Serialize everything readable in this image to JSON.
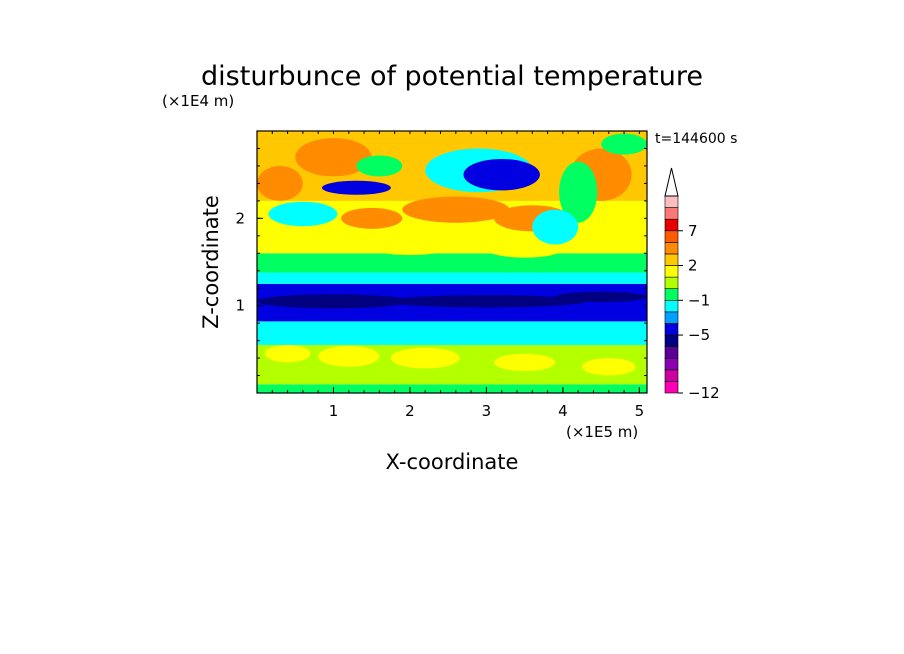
{
  "chart_data": {
    "type": "heatmap",
    "title": "disturbunce of potential temperature",
    "xlabel": "X-coordinate",
    "ylabel": "Z-coordinate",
    "x_unit": "(×1E5 m)",
    "y_unit": "(×1E4 m)",
    "time_label": "t=144600  s",
    "xlim": [
      0,
      5.1
    ],
    "ylim": [
      0,
      3.0
    ],
    "x_ticks": [
      "1",
      "2",
      "3",
      "4",
      "5"
    ],
    "y_ticks": [
      "1",
      "2"
    ],
    "colorbar": {
      "tick_labels": [
        "7",
        "2",
        "−1",
        "−5",
        "−12"
      ],
      "extend": "max",
      "colors": [
        "#ff00b4",
        "#cc00a0",
        "#8c00b4",
        "#5a0096",
        "#000080",
        "#0000e0",
        "#00a0ff",
        "#00ffff",
        "#00ff60",
        "#b4ff00",
        "#ffff00",
        "#ffc800",
        "#ff8c00",
        "#ff5a00",
        "#e60000",
        "#ff7878",
        "#ffbebe"
      ]
    },
    "bands": [
      {
        "z_from": 0.0,
        "z_to": 0.1,
        "level": "green"
      },
      {
        "z_from": 0.1,
        "z_to": 0.55,
        "level": "light-green"
      },
      {
        "z_from": 0.55,
        "z_to": 0.82,
        "level": "cyan"
      },
      {
        "z_from": 0.82,
        "z_to": 1.25,
        "level": "blue"
      },
      {
        "z_from": 1.25,
        "z_to": 1.38,
        "level": "cyan"
      },
      {
        "z_from": 1.38,
        "z_to": 1.6,
        "level": "green"
      },
      {
        "z_from": 1.6,
        "z_to": 2.2,
        "level": "yellow"
      },
      {
        "z_from": 2.2,
        "z_to": 3.0,
        "level": "yellow-orange"
      }
    ]
  }
}
